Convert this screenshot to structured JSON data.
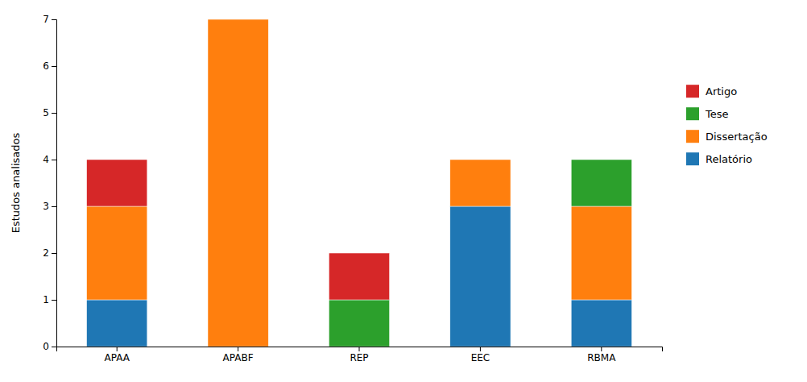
{
  "chart_data": {
    "type": "bar",
    "stacked": true,
    "categories": [
      "APAA",
      "APABF",
      "REP",
      "EEC",
      "RBMA"
    ],
    "series": [
      {
        "name": "Relatório",
        "values": [
          1,
          0,
          0,
          3,
          1
        ]
      },
      {
        "name": "Dissertação",
        "values": [
          2,
          7,
          0,
          1,
          2
        ]
      },
      {
        "name": "Tese",
        "values": [
          0,
          0,
          1,
          0,
          1
        ]
      },
      {
        "name": "Artigo",
        "values": [
          1,
          0,
          1,
          0,
          0
        ]
      }
    ],
    "y_label": "Estudos analisados",
    "ylim": [
      0,
      7
    ],
    "yticks": [
      0,
      1,
      2,
      3,
      4,
      5,
      6,
      7
    ],
    "grid": false,
    "legend": "right"
  }
}
